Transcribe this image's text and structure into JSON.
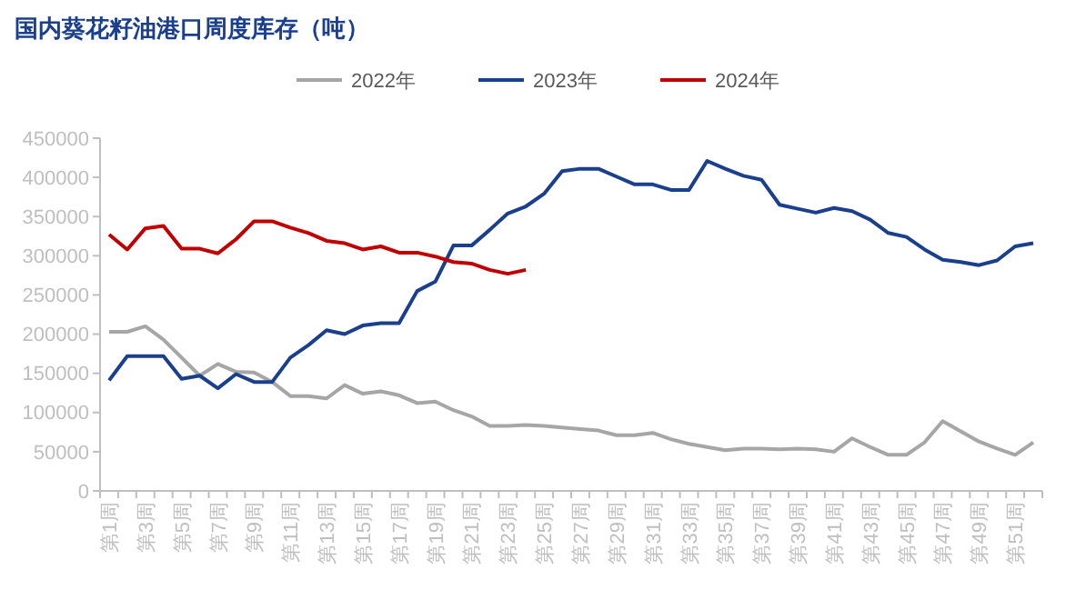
{
  "chart_data": {
    "type": "line",
    "title": "国内葵花籽油港口周度库存（吨）",
    "categories": [
      "第1周",
      null,
      "第3周",
      null,
      "第5周",
      null,
      "第7周",
      null,
      "第9周",
      null,
      "第11周",
      null,
      "第13周",
      null,
      "第15周",
      null,
      "第17周",
      null,
      "第19周",
      null,
      "第21周",
      null,
      "第23周",
      null,
      "第25周",
      null,
      "第27周",
      null,
      "第29周",
      null,
      "第31周",
      null,
      "第33周",
      null,
      "第35周",
      null,
      "第37周",
      null,
      "第39周",
      null,
      "第41周",
      null,
      "第43周",
      null,
      "第45周",
      null,
      "第47周",
      null,
      "第49周",
      null,
      "第51周",
      null
    ],
    "series": [
      {
        "name": "2022年",
        "color": "#a6a6a6",
        "values": [
          203000,
          203000,
          210000,
          193000,
          170000,
          147000,
          162000,
          152000,
          151000,
          139000,
          121000,
          121000,
          118000,
          135000,
          124000,
          127000,
          122000,
          112000,
          114000,
          103000,
          95000,
          83000,
          83000,
          84000,
          83000,
          81000,
          79000,
          77000,
          71000,
          71000,
          74000,
          66000,
          60000,
          56000,
          52000,
          54000,
          54000,
          53000,
          54000,
          53000,
          50000,
          67000,
          56000,
          46000,
          46000,
          62000,
          89000,
          76000,
          63000,
          54000,
          46000,
          62000
        ]
      },
      {
        "name": "2023年",
        "color": "#1a3f8c",
        "values": [
          141000,
          172000,
          172000,
          172000,
          143000,
          147000,
          131000,
          149000,
          139000,
          139000,
          170000,
          186000,
          205000,
          200000,
          211000,
          214000,
          214000,
          255000,
          267000,
          313000,
          313000,
          333000,
          354000,
          363000,
          379000,
          408000,
          411000,
          411000,
          401000,
          391000,
          391000,
          384000,
          384000,
          421000,
          411000,
          402000,
          397000,
          365000,
          360000,
          355000,
          361000,
          357000,
          346000,
          329000,
          324000,
          308000,
          295000,
          292000,
          288000,
          294000,
          312000,
          316000
        ]
      },
      {
        "name": "2024年",
        "color": "#c00000",
        "values": [
          327000,
          308000,
          335000,
          338000,
          309000,
          309000,
          303000,
          321000,
          344000,
          344000,
          336000,
          329000,
          319000,
          316000,
          308000,
          312000,
          304000,
          304000,
          299000,
          292000,
          290000,
          282000,
          277000,
          282000,
          null,
          null,
          null,
          null,
          null,
          null,
          null,
          null,
          null,
          null,
          null,
          null,
          null,
          null,
          null,
          null,
          null,
          null,
          null,
          null,
          null,
          null,
          null,
          null,
          null,
          null,
          null,
          null
        ]
      }
    ],
    "ylim": [
      0,
      450000
    ],
    "yticks": [
      0,
      50000,
      100000,
      150000,
      200000,
      250000,
      300000,
      350000,
      400000,
      450000
    ],
    "legend": "top",
    "grid": false,
    "marker": "none",
    "line_style": "solid"
  }
}
